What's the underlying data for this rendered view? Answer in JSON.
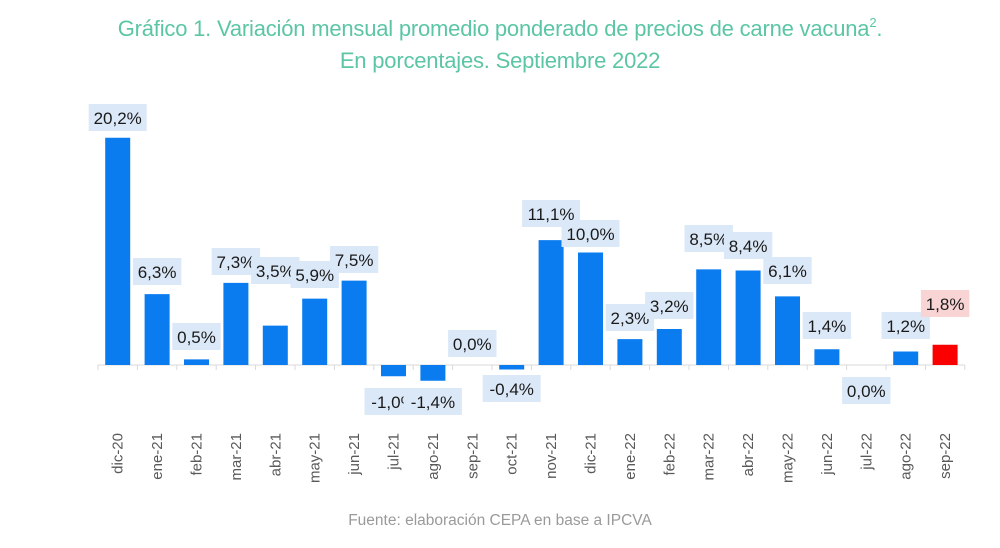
{
  "chart_data": {
    "type": "bar",
    "title": "Gráfico 1. Variación mensual promedio ponderado de precios de carne vacuna",
    "title_superscript": "2",
    "title_suffix": ".",
    "subtitle": "En porcentajes. Septiembre 2022",
    "xlabel": "",
    "ylabel": "",
    "unit": "%",
    "grid": false,
    "legend": "none",
    "categories": [
      "dic-20",
      "ene-21",
      "feb-21",
      "mar-21",
      "abr-21",
      "may-21",
      "jun-21",
      "jul-21",
      "ago-21",
      "sep-21",
      "oct-21",
      "nov-21",
      "dic-21",
      "ene-22",
      "feb-22",
      "mar-22",
      "abr-22",
      "may-22",
      "jun-22",
      "jul-22",
      "ago-22",
      "sep-22"
    ],
    "values": [
      20.2,
      6.3,
      0.5,
      7.3,
      3.5,
      5.9,
      7.5,
      -1.0,
      -1.4,
      0.0,
      -0.4,
      11.1,
      10.0,
      2.3,
      3.2,
      8.5,
      8.4,
      6.1,
      1.4,
      0.0,
      1.2,
      1.8
    ],
    "data_labels": [
      "20,2%",
      "6,3%",
      "0,5%",
      "7,3%",
      "3,5%",
      "5,9%",
      "7,5%",
      "-1,0%",
      "-1,4%",
      "0,0%",
      "-0,4%",
      "11,1%",
      "10,0%",
      "2,3%",
      "3,2%",
      "8,5%",
      "8,4%",
      "6,1%",
      "1,4%",
      "0,0%",
      "1,2%",
      "1,8%"
    ],
    "highlighted_category": "sep-22",
    "colors": {
      "bar": "#0a7cf0",
      "highlight_bar": "#fb0000",
      "label_box": "#dbe8f8",
      "highlight_label_box": "#f9d4d4",
      "title": "#5cc6a4",
      "axis": "#d9d9d9"
    }
  },
  "source": "Fuente: elaboración CEPA en base a IPCVA"
}
